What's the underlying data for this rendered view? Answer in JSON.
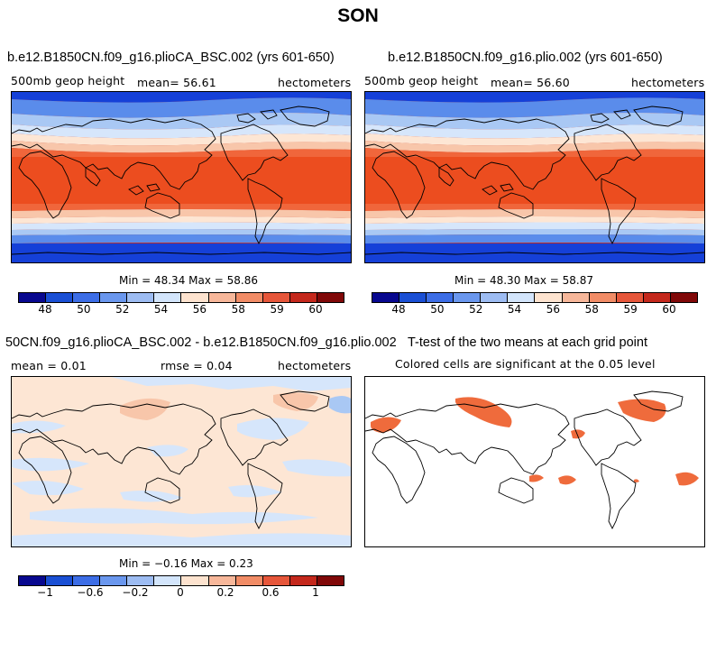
{
  "title": "SON",
  "colors": {
    "scale12": [
      "#08088f",
      "#1a4fd4",
      "#3c6de6",
      "#6a97ee",
      "#9dbcf2",
      "#d3e5fb",
      "#fde3cf",
      "#f7b79a",
      "#f18c66",
      "#e6563a",
      "#c4281c",
      "#800808"
    ],
    "dark_blue": "#1540d8",
    "mid_blue": "#5a8ceb",
    "light_blue": "#a9c8f4",
    "pale_blue": "#d6e6fb",
    "pale_orange": "#fde6d4",
    "light_orange": "#f8c6aa",
    "orange": "#f0663b",
    "red_orange": "#ec4d1f",
    "sig_orange": "#ef6b3c"
  },
  "panels": {
    "p1": {
      "title": "b.e12.B1850CN.f09_g16.plioCA_BSC.002 (yrs 601-650)",
      "var": "500mb geop height",
      "stat": "mean=   56.61",
      "units": "hectometers",
      "minmax": "Min =   48.34 Max =   58.86"
    },
    "p2": {
      "title": "b.e12.B1850CN.f09_g16.plio.002 (yrs 601-650)",
      "var": "500mb geop height",
      "stat": "mean=   56.60",
      "units": "hectometers",
      "minmax": "Min =   48.30 Max =   58.87"
    },
    "p3": {
      "title": "50CN.f09_g16.plioCA_BSC.002 - b.e12.B1850CN.f09_g16.plio.002",
      "stat1": "mean =    0.01",
      "stat2": "rmse =    0.04",
      "units": "hectometers",
      "minmax": "Min =  −0.16 Max =    0.23"
    },
    "p4": {
      "title": "T-test of the two means at each grid point",
      "subtitle": "Colored cells are significant at the 0.05 level"
    }
  },
  "colorbar1": {
    "ticks": [
      "48",
      "50",
      "52",
      "54",
      "56",
      "58",
      "59",
      "60"
    ]
  },
  "colorbar2": {
    "ticks": [
      "−1",
      "−0.6",
      "−0.2",
      "0",
      "0.2",
      "0.6",
      "1"
    ]
  }
}
